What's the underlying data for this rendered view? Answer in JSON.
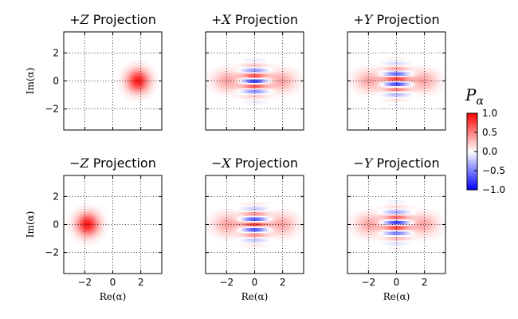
{
  "chart_data": [
    {
      "type": "heatmap",
      "title_prefix": "+",
      "title_symbol": "Z",
      "title_suffix": " Projection",
      "xlabel": "",
      "ylabel": "Im(α)",
      "xlim": [
        -3.5,
        3.5
      ],
      "ylim": [
        -3.5,
        3.5
      ],
      "xticks": [
        -2,
        0,
        2
      ],
      "yticks": [
        -2,
        0,
        2
      ],
      "show_xticklabels": false,
      "show_yticklabels": true,
      "grid": true,
      "features": [
        {
          "kind": "blob",
          "x0": 1.8,
          "y0": 0.0,
          "sx": 0.55,
          "sy": 0.55,
          "amp": 0.9
        }
      ]
    },
    {
      "type": "heatmap",
      "title_prefix": "+",
      "title_symbol": "X",
      "title_suffix": " Projection",
      "xlabel": "",
      "ylabel": "",
      "xlim": [
        -3.5,
        3.5
      ],
      "ylim": [
        -3.5,
        3.5
      ],
      "xticks": [
        -2,
        0,
        2
      ],
      "yticks": [
        -2,
        0,
        2
      ],
      "show_xticklabels": false,
      "show_yticklabels": false,
      "grid": true,
      "features": [
        {
          "kind": "blob",
          "x0": -1.9,
          "y0": 0.0,
          "sx": 0.7,
          "sy": 0.5,
          "amp": 0.35
        },
        {
          "kind": "blob",
          "x0": 1.9,
          "y0": 0.0,
          "sx": 0.7,
          "sy": 0.5,
          "amp": 0.35
        },
        {
          "kind": "fringes",
          "x0": 0.0,
          "y0": 0.0,
          "sx": 0.6,
          "sy": 0.7,
          "amp": 0.85,
          "k": 8.2,
          "phase": 0.0
        }
      ]
    },
    {
      "type": "heatmap",
      "title_prefix": "+",
      "title_symbol": "Y",
      "title_suffix": " Projection",
      "xlabel": "",
      "ylabel": "",
      "xlim": [
        -3.5,
        3.5
      ],
      "ylim": [
        -3.5,
        3.5
      ],
      "xticks": [
        -2,
        0,
        2
      ],
      "yticks": [
        -2,
        0,
        2
      ],
      "show_xticklabels": false,
      "show_yticklabels": false,
      "grid": true,
      "features": [
        {
          "kind": "blob",
          "x0": -1.9,
          "y0": 0.0,
          "sx": 0.7,
          "sy": 0.5,
          "amp": 0.35
        },
        {
          "kind": "blob",
          "x0": 1.9,
          "y0": 0.0,
          "sx": 0.7,
          "sy": 0.5,
          "amp": 0.35
        },
        {
          "kind": "fringes",
          "x0": 0.0,
          "y0": 0.0,
          "sx": 0.6,
          "sy": 0.7,
          "amp": 0.85,
          "k": 8.2,
          "phase": 2.0
        }
      ]
    },
    {
      "type": "heatmap",
      "title_prefix": "−",
      "title_symbol": "Z",
      "title_suffix": " Projection",
      "xlabel": "Re(α)",
      "ylabel": "Im(α)",
      "xlim": [
        -3.5,
        3.5
      ],
      "ylim": [
        -3.5,
        3.5
      ],
      "xticks": [
        -2,
        0,
        2
      ],
      "yticks": [
        -2,
        0,
        2
      ],
      "show_xticklabels": true,
      "show_yticklabels": true,
      "grid": true,
      "features": [
        {
          "kind": "blob",
          "x0": -1.8,
          "y0": 0.0,
          "sx": 0.55,
          "sy": 0.55,
          "amp": 0.9
        }
      ]
    },
    {
      "type": "heatmap",
      "title_prefix": "−",
      "title_symbol": "X",
      "title_suffix": " Projection",
      "xlabel": "Re(α)",
      "ylabel": "",
      "xlim": [
        -3.5,
        3.5
      ],
      "ylim": [
        -3.5,
        3.5
      ],
      "xticks": [
        -2,
        0,
        2
      ],
      "yticks": [
        -2,
        0,
        2
      ],
      "show_xticklabels": true,
      "show_yticklabels": false,
      "grid": true,
      "features": [
        {
          "kind": "blob",
          "x0": -1.9,
          "y0": 0.0,
          "sx": 0.7,
          "sy": 0.5,
          "amp": 0.35
        },
        {
          "kind": "blob",
          "x0": 1.9,
          "y0": 0.0,
          "sx": 0.7,
          "sy": 0.5,
          "amp": 0.35
        },
        {
          "kind": "fringes",
          "x0": 0.0,
          "y0": 0.0,
          "sx": 0.6,
          "sy": 0.7,
          "amp": 0.85,
          "k": 8.2,
          "phase": 3.14159
        }
      ]
    },
    {
      "type": "heatmap",
      "title_prefix": "−",
      "title_symbol": "Y",
      "title_suffix": " Projection",
      "xlabel": "Re(α)",
      "ylabel": "",
      "xlim": [
        -3.5,
        3.5
      ],
      "ylim": [
        -3.5,
        3.5
      ],
      "xticks": [
        -2,
        0,
        2
      ],
      "yticks": [
        -2,
        0,
        2
      ],
      "show_xticklabels": true,
      "show_yticklabels": false,
      "grid": true,
      "features": [
        {
          "kind": "blob",
          "x0": -1.9,
          "y0": 0.0,
          "sx": 0.7,
          "sy": 0.5,
          "amp": 0.35
        },
        {
          "kind": "blob",
          "x0": 1.9,
          "y0": 0.0,
          "sx": 0.7,
          "sy": 0.5,
          "amp": 0.35
        },
        {
          "kind": "fringes",
          "x0": 0.0,
          "y0": 0.0,
          "sx": 0.6,
          "sy": 0.7,
          "amp": 0.85,
          "k": 8.2,
          "phase": 5.14
        }
      ]
    }
  ],
  "colorbar": {
    "label": "P",
    "label_subscript": "α",
    "range": [
      -1.0,
      1.0
    ],
    "ticks": [
      1.0,
      0.5,
      0.0,
      -0.5,
      -1.0
    ],
    "tick_labels": [
      "1.0",
      "0.5",
      "0.0",
      "−0.5",
      "−1.0"
    ],
    "colors": {
      "negative": "#0000ff",
      "zero": "#ffffff",
      "positive": "#ff0000"
    }
  }
}
